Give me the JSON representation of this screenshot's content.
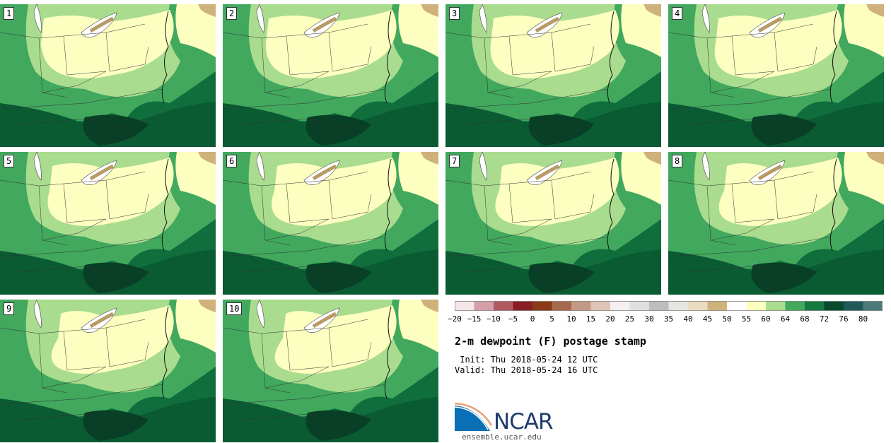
{
  "panels": [
    {
      "label": "1"
    },
    {
      "label": "2"
    },
    {
      "label": "3"
    },
    {
      "label": "4"
    },
    {
      "label": "5"
    },
    {
      "label": "6"
    },
    {
      "label": "7"
    },
    {
      "label": "8"
    },
    {
      "label": "9"
    },
    {
      "label": "10"
    }
  ],
  "colorbar": {
    "ticks": [
      "−20",
      "−15",
      "−10",
      "−5",
      "0",
      "5",
      "10",
      "15",
      "20",
      "25",
      "30",
      "35",
      "40",
      "45",
      "50",
      "55",
      "60",
      "64",
      "68",
      "72",
      "76",
      "80"
    ],
    "colors": [
      "#f5e6e8",
      "#d4a0a8",
      "#b05a62",
      "#8a1e24",
      "#8a3a14",
      "#a86a4e",
      "#c49a86",
      "#dec4b6",
      "#f4f0f0",
      "#e0e0e0",
      "#bdbdbd",
      "#e4e6e0",
      "#eadcc0",
      "#cfb27a",
      "#ffffff",
      "#fcffc0",
      "#a9dc8e",
      "#41a85e",
      "#137a40",
      "#0a4a2c",
      "#1f5a5a",
      "#4a7a7a"
    ]
  },
  "title": "2-m dewpoint (F) postage stamp",
  "init": " Init: Thu 2018-05-24 12 UTC",
  "valid": "Valid: Thu 2018-05-24 16 UTC",
  "logo": {
    "text": "NCAR",
    "site": "ensemble.ucar.edu"
  }
}
